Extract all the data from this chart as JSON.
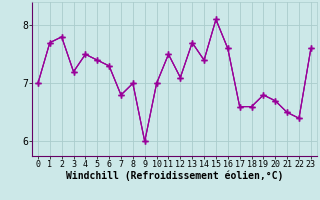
{
  "x": [
    0,
    1,
    2,
    3,
    4,
    5,
    6,
    7,
    8,
    9,
    10,
    11,
    12,
    13,
    14,
    15,
    16,
    17,
    18,
    19,
    20,
    21,
    22,
    23
  ],
  "y": [
    7.0,
    7.7,
    7.8,
    7.2,
    7.5,
    7.4,
    7.3,
    6.8,
    7.0,
    6.0,
    7.0,
    7.5,
    7.1,
    7.7,
    7.4,
    8.1,
    7.6,
    6.6,
    6.6,
    6.8,
    6.7,
    6.5,
    6.4,
    7.6
  ],
  "line_color": "#990099",
  "marker": "+",
  "markersize": 4,
  "linewidth": 0.8,
  "xlabel": "Windchill (Refroidissement éolien,°C)",
  "ylim": [
    5.75,
    8.4
  ],
  "xlim": [
    -0.5,
    23.5
  ],
  "yticks": [
    6,
    7,
    8
  ],
  "xticks": [
    0,
    1,
    2,
    3,
    4,
    5,
    6,
    7,
    8,
    9,
    10,
    11,
    12,
    13,
    14,
    15,
    16,
    17,
    18,
    19,
    20,
    21,
    22,
    23
  ],
  "bg_color": "#cce8e8",
  "grid_color": "#aacccc",
  "tick_fontsize": 6,
  "xlabel_fontsize": 7,
  "num_overlaps": 4
}
